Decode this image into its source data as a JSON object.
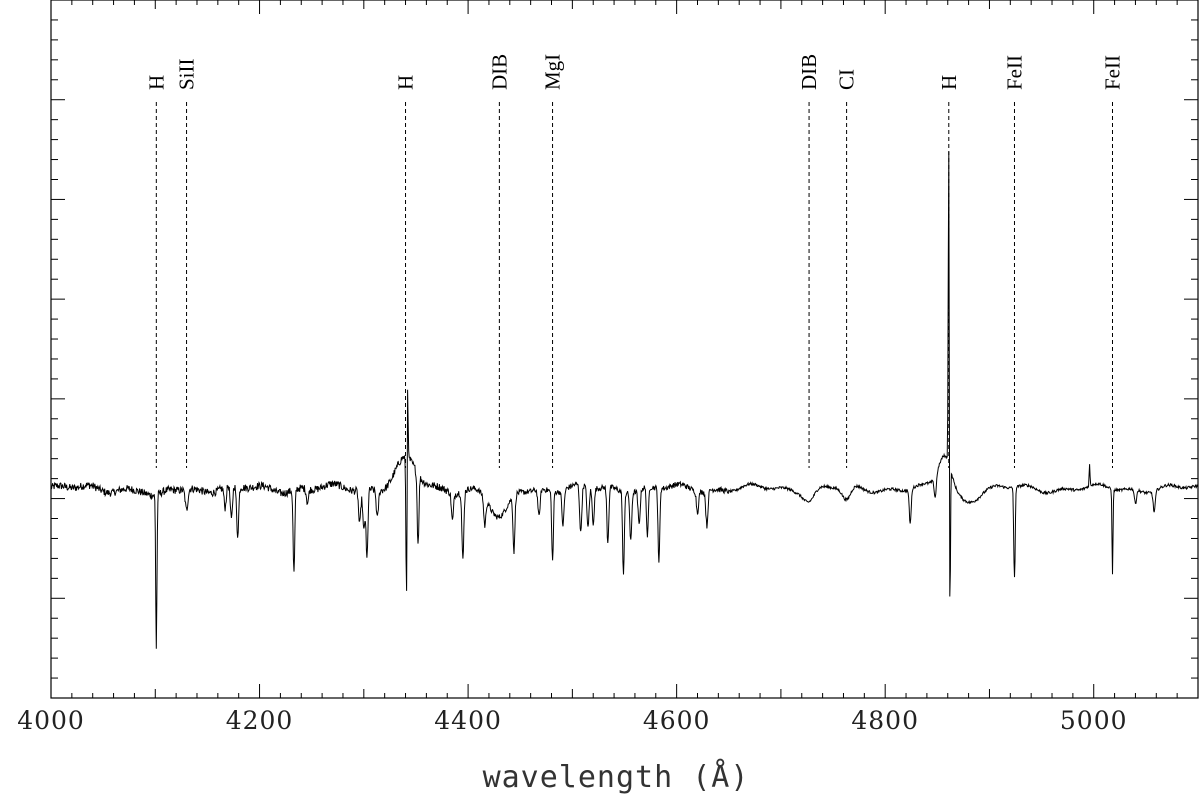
{
  "chart_data": {
    "type": "line",
    "title": "",
    "xlabel": "wavelength (Å)",
    "ylabel": "",
    "xlim": [
      4000,
      5100
    ],
    "ylim": [
      0,
      1
    ],
    "grid": false,
    "legend": "none",
    "line_color": "#000000",
    "x_ticks": [
      4000,
      4200,
      4400,
      4600,
      4800,
      5000
    ],
    "x_tick_labels": [
      "4000",
      "4200",
      "4400",
      "4600",
      "4800",
      "5000"
    ],
    "line_markers": [
      {
        "label": "H",
        "x": 4101
      },
      {
        "label": "SiII",
        "x": 4130
      },
      {
        "label": "H",
        "x": 4340
      },
      {
        "label": "DIB",
        "x": 4430
      },
      {
        "label": "MgI",
        "x": 4481
      },
      {
        "label": "DIB",
        "x": 4727
      },
      {
        "label": "CI",
        "x": 4763
      },
      {
        "label": "H",
        "x": 4861
      },
      {
        "label": "FeII",
        "x": 4924
      },
      {
        "label": "FeII",
        "x": 5018
      }
    ],
    "series": [
      {
        "continuum": 0.3,
        "features": [
          {
            "x": 4101,
            "depth": 0.22,
            "width": 0.6
          },
          {
            "x": 4101,
            "depth": 0.015,
            "width": 8,
            "sign": -1
          },
          {
            "x": 4130,
            "depth": 0.03,
            "width": 1.2
          },
          {
            "x": 4167,
            "depth": 0.03,
            "width": 1.0
          },
          {
            "x": 4173,
            "depth": 0.05,
            "width": 1.0
          },
          {
            "x": 4179,
            "depth": 0.07,
            "width": 1.0
          },
          {
            "x": 4233,
            "depth": 0.12,
            "width": 0.8
          },
          {
            "x": 4246,
            "depth": 0.02,
            "width": 1.0
          },
          {
            "x": 4296,
            "depth": 0.05,
            "width": 1.0
          },
          {
            "x": 4300,
            "depth": 0.06,
            "width": 1.0
          },
          {
            "x": 4303,
            "depth": 0.1,
            "width": 0.9
          },
          {
            "x": 4313,
            "depth": 0.04,
            "width": 1.0
          },
          {
            "x": 4340,
            "depth": 0.04,
            "width": 10,
            "sign": 1
          },
          {
            "x": 4341,
            "depth": 0.2,
            "width": 0.6
          },
          {
            "x": 4342,
            "depth": 0.15,
            "width": 0.4,
            "sign": 1
          },
          {
            "x": 4352,
            "depth": 0.1,
            "width": 0.8
          },
          {
            "x": 4385,
            "depth": 0.04,
            "width": 1.0
          },
          {
            "x": 4395,
            "depth": 0.1,
            "width": 0.9
          },
          {
            "x": 4416,
            "depth": 0.04,
            "width": 1.0
          },
          {
            "x": 4430,
            "depth": 0.045,
            "width": 9
          },
          {
            "x": 4444,
            "depth": 0.08,
            "width": 0.9
          },
          {
            "x": 4468,
            "depth": 0.04,
            "width": 1.0
          },
          {
            "x": 4481,
            "depth": 0.1,
            "width": 0.8
          },
          {
            "x": 4491,
            "depth": 0.05,
            "width": 1.0
          },
          {
            "x": 4508,
            "depth": 0.07,
            "width": 1.0
          },
          {
            "x": 4515,
            "depth": 0.06,
            "width": 1.0
          },
          {
            "x": 4520,
            "depth": 0.05,
            "width": 1.0
          },
          {
            "x": 4534,
            "depth": 0.08,
            "width": 0.9
          },
          {
            "x": 4549,
            "depth": 0.12,
            "width": 0.8
          },
          {
            "x": 4556,
            "depth": 0.07,
            "width": 0.9
          },
          {
            "x": 4564,
            "depth": 0.05,
            "width": 1.0
          },
          {
            "x": 4572,
            "depth": 0.07,
            "width": 0.9
          },
          {
            "x": 4583,
            "depth": 0.11,
            "width": 0.8
          },
          {
            "x": 4620,
            "depth": 0.03,
            "width": 1.0
          },
          {
            "x": 4629,
            "depth": 0.05,
            "width": 1.0
          },
          {
            "x": 4727,
            "depth": 0.015,
            "width": 5
          },
          {
            "x": 4763,
            "depth": 0.02,
            "width": 4
          },
          {
            "x": 4824,
            "depth": 0.05,
            "width": 0.9
          },
          {
            "x": 4848,
            "depth": 0.03,
            "width": 1.0
          },
          {
            "x": 4857,
            "depth": 0.05,
            "width": 6,
            "sign": 1
          },
          {
            "x": 4861,
            "depth": 0.48,
            "width": 0.5,
            "sign": 1
          },
          {
            "x": 4862,
            "depth": 0.25,
            "width": 0.5
          },
          {
            "x": 4878,
            "depth": 0.015,
            "width": 10
          },
          {
            "x": 4924,
            "depth": 0.06,
            "width": 0.4,
            "sign": 1
          },
          {
            "x": 4924,
            "depth": 0.19,
            "width": 0.6
          },
          {
            "x": 4996,
            "depth": 0.03,
            "width": 0.4,
            "sign": 1
          },
          {
            "x": 5018,
            "depth": 0.09,
            "width": 0.5,
            "sign": 1
          },
          {
            "x": 5018,
            "depth": 0.21,
            "width": 0.5
          },
          {
            "x": 5040,
            "depth": 0.02,
            "width": 1.0
          },
          {
            "x": 5058,
            "depth": 0.03,
            "width": 1.0
          }
        ]
      }
    ]
  }
}
